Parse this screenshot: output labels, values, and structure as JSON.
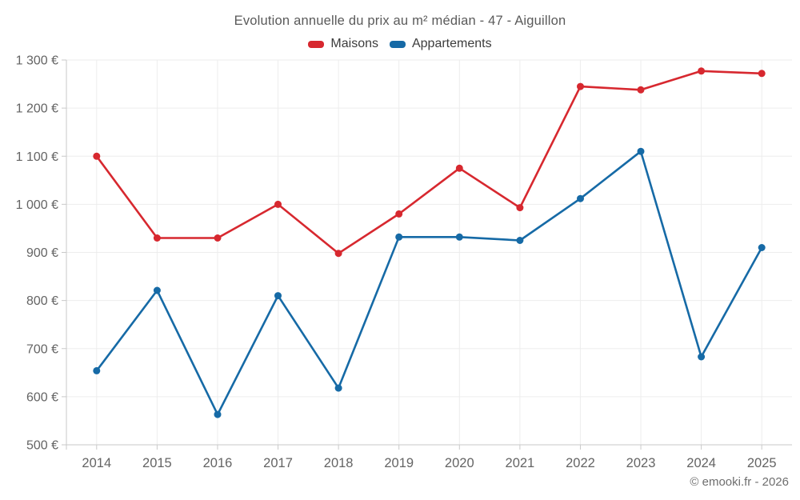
{
  "chart_data": {
    "type": "line",
    "title": "Evolution annuelle du prix au m² médian - 47 - Aiguillon",
    "categories": [
      "2014",
      "2015",
      "2016",
      "2017",
      "2018",
      "2019",
      "2020",
      "2021",
      "2022",
      "2023",
      "2024",
      "2025"
    ],
    "series": [
      {
        "name": "Maisons",
        "color": "#d7282f",
        "values": [
          1100,
          930,
          930,
          1000,
          898,
          980,
          1075,
          993,
          1245,
          1238,
          1277,
          1272
        ]
      },
      {
        "name": "Appartements",
        "color": "#166aa6",
        "values": [
          654,
          821,
          563,
          810,
          618,
          932,
          932,
          925,
          1012,
          1110,
          683,
          910
        ]
      }
    ],
    "ylim": [
      500,
      1300
    ],
    "y_ticks": [
      {
        "value": 500,
        "label": "500 €"
      },
      {
        "value": 600,
        "label": "600 €"
      },
      {
        "value": 700,
        "label": "700 €"
      },
      {
        "value": 800,
        "label": "800 €"
      },
      {
        "value": 900,
        "label": "900 €"
      },
      {
        "value": 1000,
        "label": "1 000 €"
      },
      {
        "value": 1100,
        "label": "1 100 €"
      },
      {
        "value": 1200,
        "label": "1 200 €"
      },
      {
        "value": 1300,
        "label": "1 300 €"
      }
    ],
    "grid": true,
    "legend_position": "top"
  },
  "footer": {
    "copyright": "© emooki.fr - 2026"
  },
  "colors": {
    "background": "#ffffff",
    "grid": "#ededed",
    "axis": "#c9c9c9",
    "tick_text": "#646464",
    "title_text": "#5a5a5a",
    "legend_text": "#3c3c3c",
    "footer_text": "#6e6e6e"
  }
}
